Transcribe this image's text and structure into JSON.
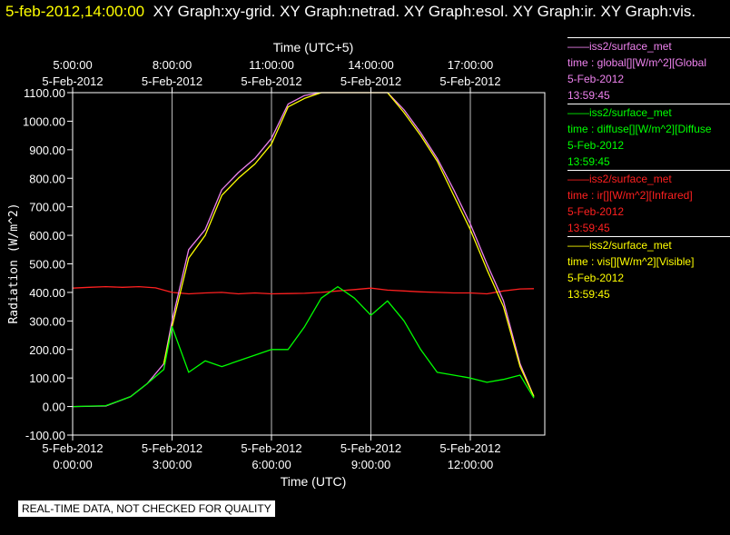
{
  "header": {
    "timestamp": "5-feb-2012,14:00:00",
    "graphs": "XY Graph:xy-grid.  XY Graph:netrad.  XY Graph:esol.  XY Graph:ir.  XY Graph:vis."
  },
  "footer": {
    "text": "REAL-TIME DATA, NOT CHECKED FOR QUALITY"
  },
  "legend": [
    {
      "source": "iss2/surface_met",
      "field": "time : global[][W/m^2][Global",
      "date": "5-Feb-2012",
      "time": "13:59:45",
      "color": "#ee82ee"
    },
    {
      "source": "iss2/surface_met",
      "field": "time : diffuse[][W/m^2][Diffuse",
      "date": "5-Feb-2012",
      "time": "13:59:45",
      "color": "#00ff00"
    },
    {
      "source": "iss2/surface_met",
      "field": "time : ir[][W/m^2][Infrared]",
      "date": "5-Feb-2012",
      "time": "13:59:45",
      "color": "#ff2020"
    },
    {
      "source": "iss2/surface_met",
      "field": "time : vis[][W/m^2][Visible]",
      "date": "5-Feb-2012",
      "time": "13:59:45",
      "color": "#ffff00"
    }
  ],
  "chart_data": {
    "type": "line",
    "title": "",
    "xlabel": "Time (UTC)",
    "x2label": "Time (UTC+5)",
    "ylabel": "Radiation (W/m^2)",
    "ylim": [
      -100,
      1100
    ],
    "xlim": [
      "2012-02-05 00:00",
      "2012-02-05 14:00"
    ],
    "grid": true,
    "y_ticks": [
      "-100.00",
      "0.00",
      "100.00",
      "200.00",
      "300.00",
      "400.00",
      "500.00",
      "600.00",
      "700.00",
      "800.00",
      "900.00",
      "1000.00",
      "1100.00"
    ],
    "x_ticks": [
      {
        "time": "2012-02-05 00:00",
        "date": "5-Feb-2012",
        "label": "0:00:00"
      },
      {
        "time": "2012-02-05 03:00",
        "date": "5-Feb-2012",
        "label": "3:00:00"
      },
      {
        "time": "2012-02-05 06:00",
        "date": "5-Feb-2012",
        "label": "6:00:00"
      },
      {
        "time": "2012-02-05 09:00",
        "date": "5-Feb-2012",
        "label": "9:00:00"
      },
      {
        "time": "2012-02-05 12:00",
        "date": "5-Feb-2012",
        "label": "12:00:00"
      }
    ],
    "x2_ticks": [
      {
        "time": "2012-02-05 00:00",
        "date": "5-Feb-2012",
        "label": "5:00:00"
      },
      {
        "time": "2012-02-05 03:00",
        "date": "5-Feb-2012",
        "label": "8:00:00"
      },
      {
        "time": "2012-02-05 06:00",
        "date": "5-Feb-2012",
        "label": "11:00:00"
      },
      {
        "time": "2012-02-05 09:00",
        "date": "5-Feb-2012",
        "label": "14:00:00"
      },
      {
        "time": "2012-02-05 12:00",
        "date": "5-Feb-2012",
        "label": "17:00:00"
      }
    ],
    "series": [
      {
        "name": "time : ir[][W/m^2][Infrared]",
        "color": "#ff2020",
        "x": [
          "2012-02-05 00:00",
          "2012-02-05 00:30",
          "2012-02-05 01:00",
          "2012-02-05 01:30",
          "2012-02-05 02:00",
          "2012-02-05 02:30",
          "2012-02-05 03:00",
          "2012-02-05 03:30",
          "2012-02-05 04:00",
          "2012-02-05 04:30",
          "2012-02-05 05:00",
          "2012-02-05 05:30",
          "2012-02-05 06:00",
          "2012-02-05 06:30",
          "2012-02-05 07:00",
          "2012-02-05 07:30",
          "2012-02-05 08:00",
          "2012-02-05 08:30",
          "2012-02-05 09:00",
          "2012-02-05 09:30",
          "2012-02-05 10:00",
          "2012-02-05 10:30",
          "2012-02-05 11:00",
          "2012-02-05 11:30",
          "2012-02-05 12:00",
          "2012-02-05 12:30",
          "2012-02-05 13:00",
          "2012-02-05 13:30",
          "2012-02-05 13:55"
        ],
        "y": [
          415,
          418,
          420,
          418,
          420,
          416,
          400,
          395,
          398,
          400,
          395,
          398,
          395,
          396,
          397,
          400,
          405,
          410,
          415,
          408,
          405,
          402,
          400,
          398,
          398,
          395,
          405,
          412,
          413
        ]
      },
      {
        "name": "time : global[][W/m^2][Global",
        "color": "#ee82ee",
        "x": [
          "2012-02-05 00:00",
          "2012-02-05 01:00",
          "2012-02-05 01:45",
          "2012-02-05 02:15",
          "2012-02-05 02:45",
          "2012-02-05 03:00",
          "2012-02-05 03:30",
          "2012-02-05 04:00",
          "2012-02-05 04:30",
          "2012-02-05 05:00",
          "2012-02-05 05:30",
          "2012-02-05 06:00",
          "2012-02-05 06:30",
          "2012-02-05 07:00",
          "2012-02-05 07:30",
          "2012-02-05 08:00",
          "2012-02-05 08:30",
          "2012-02-05 09:00",
          "2012-02-05 09:30",
          "2012-02-05 10:00",
          "2012-02-05 10:30",
          "2012-02-05 11:00",
          "2012-02-05 11:30",
          "2012-02-05 12:00",
          "2012-02-05 12:30",
          "2012-02-05 13:00",
          "2012-02-05 13:30",
          "2012-02-05 13:55"
        ],
        "y": [
          0,
          2,
          35,
          80,
          150,
          300,
          550,
          620,
          760,
          820,
          870,
          940,
          1060,
          1090,
          1100,
          1100,
          1100,
          1100,
          1100,
          1040,
          960,
          870,
          760,
          640,
          500,
          370,
          150,
          35
        ]
      },
      {
        "name": "time : vis[][W/m^2][Visible]",
        "color": "#ffff00",
        "x": [
          "2012-02-05 02:45",
          "2012-02-05 03:00",
          "2012-02-05 03:30",
          "2012-02-05 04:00",
          "2012-02-05 04:30",
          "2012-02-05 05:00",
          "2012-02-05 05:30",
          "2012-02-05 06:00",
          "2012-02-05 06:30",
          "2012-02-05 07:00",
          "2012-02-05 07:30",
          "2012-02-05 08:00",
          "2012-02-05 08:30",
          "2012-02-05 09:00",
          "2012-02-05 09:30",
          "2012-02-05 10:00",
          "2012-02-05 10:30",
          "2012-02-05 11:00",
          "2012-02-05 11:30",
          "2012-02-05 12:00",
          "2012-02-05 12:30",
          "2012-02-05 13:00",
          "2012-02-05 13:30",
          "2012-02-05 13:55"
        ],
        "y": [
          150,
          280,
          520,
          600,
          740,
          800,
          850,
          920,
          1050,
          1080,
          1100,
          1100,
          1100,
          1100,
          1100,
          1030,
          950,
          860,
          740,
          620,
          480,
          350,
          140,
          35
        ]
      },
      {
        "name": "time : diffuse[][W/m^2][Diffuse",
        "color": "#00ff00",
        "x": [
          "2012-02-05 00:00",
          "2012-02-05 01:00",
          "2012-02-05 01:45",
          "2012-02-05 02:15",
          "2012-02-05 02:45",
          "2012-02-05 03:00",
          "2012-02-05 03:30",
          "2012-02-05 04:00",
          "2012-02-05 04:30",
          "2012-02-05 05:00",
          "2012-02-05 05:30",
          "2012-02-05 06:00",
          "2012-02-05 06:30",
          "2012-02-05 07:00",
          "2012-02-05 07:30",
          "2012-02-05 08:00",
          "2012-02-05 08:30",
          "2012-02-05 09:00",
          "2012-02-05 09:30",
          "2012-02-05 10:00",
          "2012-02-05 10:30",
          "2012-02-05 11:00",
          "2012-02-05 11:30",
          "2012-02-05 12:00",
          "2012-02-05 12:30",
          "2012-02-05 13:00",
          "2012-02-05 13:30",
          "2012-02-05 13:55"
        ],
        "y": [
          0,
          3,
          35,
          80,
          130,
          280,
          120,
          160,
          140,
          160,
          180,
          200,
          200,
          280,
          380,
          420,
          380,
          320,
          370,
          300,
          200,
          120,
          110,
          100,
          85,
          95,
          110,
          30
        ]
      }
    ]
  }
}
